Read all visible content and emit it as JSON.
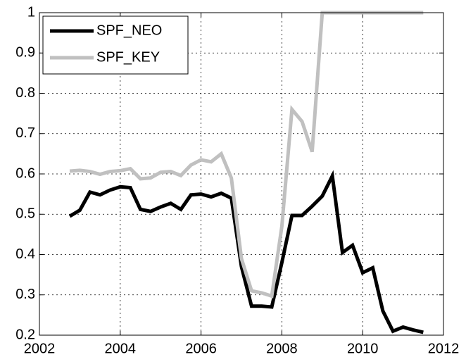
{
  "chart_data": {
    "type": "line",
    "x": [
      2002.75,
      2003,
      2003.25,
      2003.5,
      2003.75,
      2004,
      2004.25,
      2004.5,
      2004.75,
      2005,
      2005.25,
      2005.5,
      2005.75,
      2006,
      2006.25,
      2006.5,
      2006.75,
      2007,
      2007.25,
      2007.5,
      2007.75,
      2008,
      2008.25,
      2008.5,
      2008.75,
      2009,
      2009.25,
      2009.5,
      2009.75,
      2010,
      2010.25,
      2010.5,
      2010.75,
      2011,
      2011.25,
      2011.5
    ],
    "series": [
      {
        "name": "SPF_NEO",
        "color": "#000000",
        "values": [
          0.495,
          0.51,
          0.555,
          0.548,
          0.56,
          0.568,
          0.566,
          0.512,
          0.507,
          0.518,
          0.527,
          0.512,
          0.548,
          0.55,
          0.543,
          0.552,
          0.54,
          0.37,
          0.272,
          0.272,
          0.27,
          0.38,
          0.497,
          0.497,
          0.52,
          0.545,
          0.595,
          0.405,
          0.423,
          0.355,
          0.367,
          0.26,
          0.21,
          0.22,
          0.213,
          0.207
        ]
      },
      {
        "name": "SPF_KEY",
        "color": "#c0c0c0",
        "values": [
          0.607,
          0.609,
          0.606,
          0.599,
          0.606,
          0.608,
          0.613,
          0.588,
          0.59,
          0.604,
          0.606,
          0.596,
          0.622,
          0.635,
          0.63,
          0.65,
          0.59,
          0.39,
          0.31,
          0.305,
          0.297,
          0.47,
          0.76,
          0.73,
          0.655,
          1,
          1,
          1,
          1,
          1,
          1,
          1,
          1,
          1,
          1,
          1
        ]
      }
    ],
    "xlim": [
      2002,
      2012
    ],
    "xticks": [
      2002,
      2004,
      2006,
      2008,
      2010,
      2012
    ],
    "ylim": [
      0.2,
      1
    ],
    "yticks": [
      0.2,
      0.3,
      0.4,
      0.5,
      0.6,
      0.7,
      0.8,
      0.9,
      1
    ],
    "grid": true,
    "legend": "northwest"
  }
}
